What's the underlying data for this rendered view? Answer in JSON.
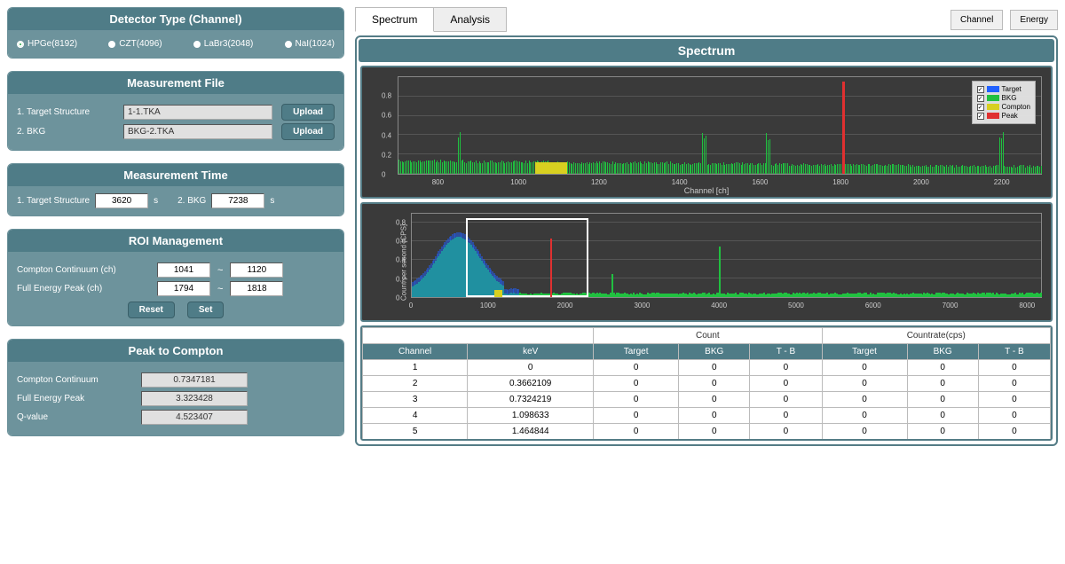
{
  "colors": {
    "panel_header": "#4f7c87",
    "panel_body": "#6d939c",
    "chart_bg": "#3a3a3a",
    "grid": "#555555",
    "target_series": "#2060ff",
    "bkg_series": "#20c040",
    "compton_series": "#d8d020",
    "peak_series": "#e03030"
  },
  "detector": {
    "title": "Detector Type (Channel)",
    "options": [
      "HPGe(8192)",
      "CZT(4096)",
      "LaBr3(2048)",
      "NaI(1024)"
    ],
    "selected": 0
  },
  "measfile": {
    "title": "Measurement File",
    "rows": [
      {
        "label": "1. Target Structure",
        "value": "1-1.TKA",
        "btn": "Upload"
      },
      {
        "label": "2. BKG",
        "value": "BKG-2.TKA",
        "btn": "Upload"
      }
    ]
  },
  "meastime": {
    "title": "Measurement Time",
    "label1": "1. Target Structure",
    "val1": "3620",
    "unit": "s",
    "label2": "2. BKG",
    "val2": "7238"
  },
  "roi": {
    "title": "ROI Management",
    "rows": [
      {
        "label": "Compton Continuum (ch)",
        "from": "1041",
        "to": "1120"
      },
      {
        "label": "Full Energy Peak (ch)",
        "from": "1794",
        "to": "1818"
      }
    ],
    "reset": "Reset",
    "set": "Set",
    "dash": "~"
  },
  "ptc": {
    "title": "Peak to Compton",
    "rows": [
      {
        "label": "Compton Continuum",
        "val": "0.7347181"
      },
      {
        "label": "Full Energy Peak",
        "val": "3.323428"
      },
      {
        "label": "Q-value",
        "val": "4.523407"
      }
    ]
  },
  "tabs": {
    "items": [
      "Spectrum",
      "Analysis"
    ],
    "active": 0
  },
  "topbtns": [
    "Channel",
    "Energy"
  ],
  "spectrum": {
    "title": "Spectrum",
    "legend": [
      "Target",
      "BKG",
      "Compton",
      "Peak"
    ],
    "legend_colors": [
      "#2060ff",
      "#20c040",
      "#d8d020",
      "#e03030"
    ],
    "chart1": {
      "xlabel": "Channel [ch]",
      "xmin": 700,
      "xmax": 2300,
      "xticks": [
        800,
        1000,
        1200,
        1400,
        1600,
        1800,
        2000,
        2200
      ],
      "ymin": 0,
      "ymax": 1.0,
      "yticks": [
        0,
        0.2,
        0.4,
        0.6,
        0.8
      ],
      "compton_region": {
        "from": 1041,
        "to": 1120,
        "color": "#d8d020"
      },
      "peak": {
        "ch": 1806,
        "height": 0.95
      }
    },
    "chart2": {
      "ylabel": "Count per second [CPS]",
      "xmin": 0,
      "xmax": 8192,
      "xticks": [
        0,
        1000,
        2000,
        3000,
        4000,
        5000,
        6000,
        7000,
        8000
      ],
      "ymin": 0,
      "ymax": 0.9,
      "yticks": [
        0,
        0.2,
        0.4,
        0.6,
        0.8
      ],
      "roi_box": {
        "xfrom": 700,
        "xto": 2300,
        "yfrom": 0,
        "yto": 0.85
      }
    }
  },
  "table": {
    "group_headers": [
      "",
      "Count",
      "Countrate(cps)"
    ],
    "headers": [
      "Channel",
      "keV",
      "Target",
      "BKG",
      "T - B",
      "Target",
      "BKG",
      "T - B"
    ],
    "rows": [
      [
        "1",
        "0",
        "0",
        "0",
        "0",
        "0",
        "0",
        "0"
      ],
      [
        "2",
        "0.3662109",
        "0",
        "0",
        "0",
        "0",
        "0",
        "0"
      ],
      [
        "3",
        "0.7324219",
        "0",
        "0",
        "0",
        "0",
        "0",
        "0"
      ],
      [
        "4",
        "1.098633",
        "0",
        "0",
        "0",
        "0",
        "0",
        "0"
      ],
      [
        "5",
        "1.464844",
        "0",
        "0",
        "0",
        "0",
        "0",
        "0"
      ]
    ]
  }
}
